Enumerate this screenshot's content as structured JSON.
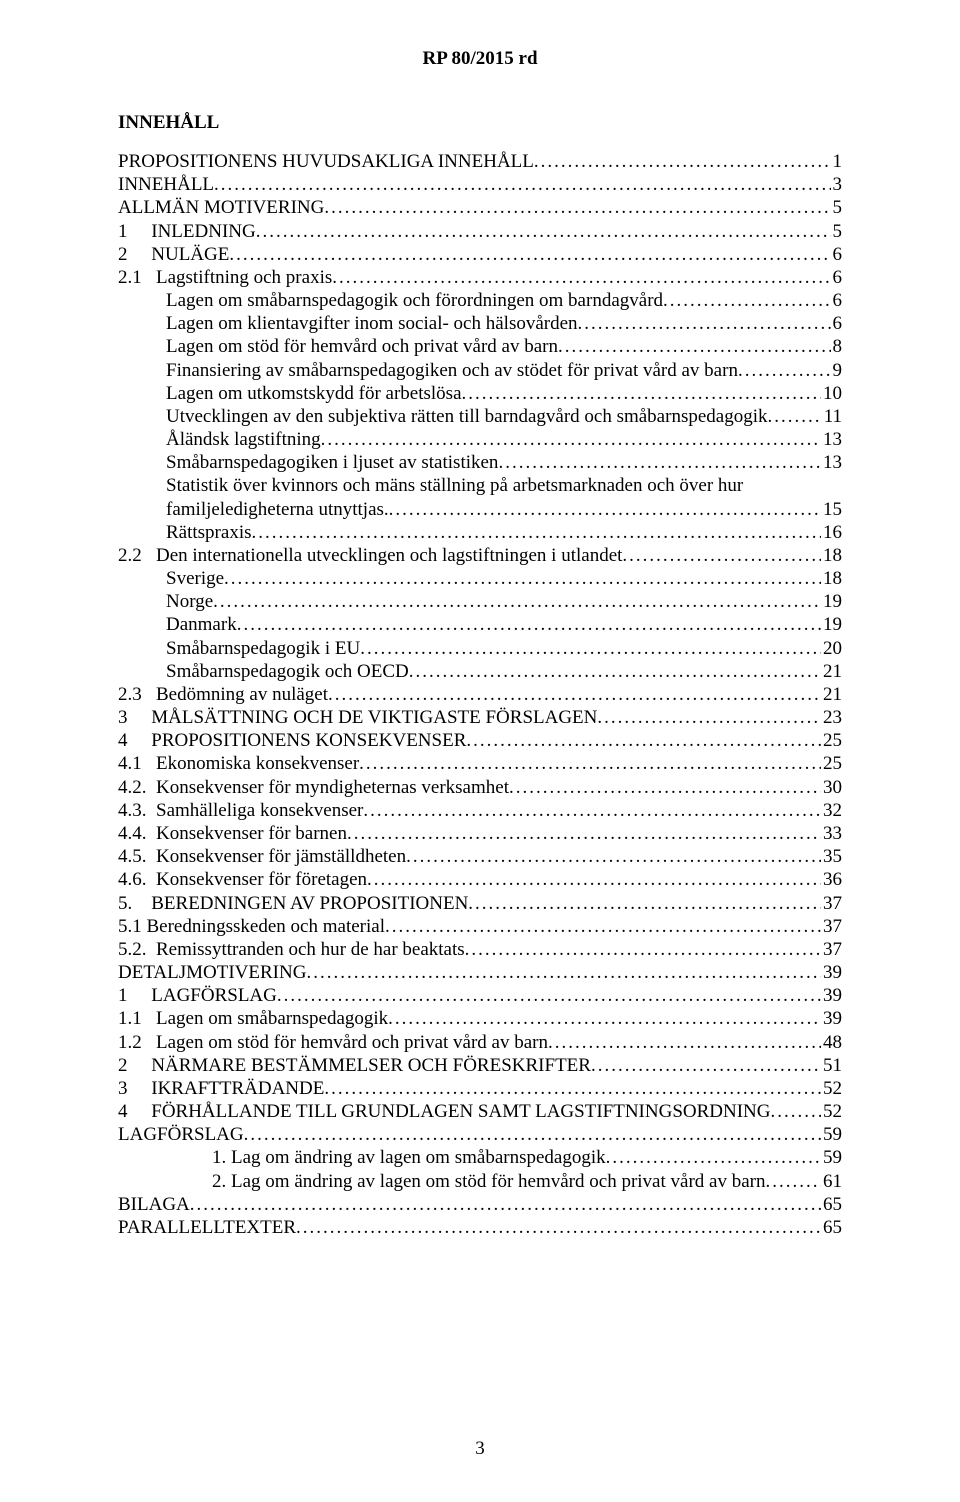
{
  "header": "RP 80/2015 rd",
  "section_title": "INNEHÅLL",
  "page_number": "3",
  "toc": [
    {
      "label": "PROPOSITIONENS HUVUDSAKLIGA INNEHÅLL",
      "page": "1",
      "indent": 0
    },
    {
      "label": "INNEHÅLL",
      "page": "3",
      "indent": 0
    },
    {
      "label": "ALLMÄN MOTIVERING",
      "page": "5",
      "indent": 0
    },
    {
      "label": "1     INLEDNING",
      "page": "5",
      "indent": 0
    },
    {
      "label": "2     NULÄGE",
      "page": "6",
      "indent": 0
    },
    {
      "label": "2.1   Lagstiftning och praxis",
      "page": "6",
      "indent": 0
    },
    {
      "label": "Lagen om småbarnspedagogik och förordningen om barndagvård",
      "page": "6",
      "indent": 1
    },
    {
      "label": "Lagen om klientavgifter inom social- och hälsovården",
      "page": "6",
      "indent": 1
    },
    {
      "label": "Lagen om stöd för hemvård och privat vård av barn",
      "page": "8",
      "indent": 1
    },
    {
      "label": "Finansiering av småbarnspedagogiken och av stödet för privat vård av barn",
      "page": "9",
      "indent": 1
    },
    {
      "label": "Lagen om utkomstskydd för arbetslösa",
      "page": "10",
      "indent": 1
    },
    {
      "label": "Utvecklingen av den subjektiva rätten till barndagvård och småbarnspedagogik",
      "page": "11",
      "indent": 1
    },
    {
      "label": "Åländsk lagstiftning",
      "page": "13",
      "indent": 1
    },
    {
      "label": "Småbarnspedagogiken i ljuset av statistiken",
      "page": "13",
      "indent": 1
    },
    {
      "label": "Statistik över kvinnors och mäns ställning på arbetsmarknaden och över hur familjeledigheterna utnyttjas.",
      "page": "15",
      "indent": 1,
      "wrap": true
    },
    {
      "label": "Rättspraxis",
      "page": "16",
      "indent": 1
    },
    {
      "label": "2.2   Den internationella utvecklingen och lagstiftningen i utlandet",
      "page": "18",
      "indent": 0
    },
    {
      "label": "Sverige",
      "page": "18",
      "indent": 1
    },
    {
      "label": "Norge",
      "page": "19",
      "indent": 1
    },
    {
      "label": "Danmark",
      "page": "19",
      "indent": 1
    },
    {
      "label": "Småbarnspedagogik i EU",
      "page": "20",
      "indent": 1
    },
    {
      "label": "Småbarnspedagogik och OECD",
      "page": "21",
      "indent": 1
    },
    {
      "label": "2.3   Bedömning av nuläget",
      "page": "21",
      "indent": 0
    },
    {
      "label": "3     MÅLSÄTTNING OCH DE VIKTIGASTE FÖRSLAGEN",
      "page": "23",
      "indent": 0
    },
    {
      "label": "4     PROPOSITIONENS KONSEKVENSER",
      "page": "25",
      "indent": 0
    },
    {
      "label": "4.1   Ekonomiska konsekvenser",
      "page": "25",
      "indent": 0
    },
    {
      "label": "4.2.  Konsekvenser för myndigheternas verksamhet",
      "page": "30",
      "indent": 0
    },
    {
      "label": "4.3.  Samhälleliga konsekvenser",
      "page": "32",
      "indent": 0
    },
    {
      "label": "4.4.  Konsekvenser för barnen",
      "page": "33",
      "indent": 0
    },
    {
      "label": "4.5.  Konsekvenser för jämställdheten",
      "page": "35",
      "indent": 0
    },
    {
      "label": "4.6.  Konsekvenser för företagen",
      "page": "36",
      "indent": 0
    },
    {
      "label": "5.    BEREDNINGEN AV PROPOSITIONEN",
      "page": "37",
      "indent": 0
    },
    {
      "label": "5.1 Beredningsskeden och material",
      "page": "37",
      "indent": 0
    },
    {
      "label": "5.2.  Remissyttranden och hur de har beaktats",
      "page": "37",
      "indent": 0
    },
    {
      "label": "DETALJMOTIVERING",
      "page": "39",
      "indent": 0
    },
    {
      "label": "1     LAGFÖRSLAG",
      "page": "39",
      "indent": 0
    },
    {
      "label": "1.1   Lagen om småbarnspedagogik",
      "page": "39",
      "indent": 0
    },
    {
      "label": "1.2   Lagen om stöd för hemvård och privat vård av barn",
      "page": "48",
      "indent": 0
    },
    {
      "label": "2     NÄRMARE BESTÄMMELSER OCH FÖRESKRIFTER",
      "page": "51",
      "indent": 0
    },
    {
      "label": "3     IKRAFTTRÄDANDE",
      "page": "52",
      "indent": 0
    },
    {
      "label": "4     FÖRHÅLLANDE TILL GRUNDLAGEN SAMT LAGSTIFTNINGSORDNING",
      "page": "52",
      "indent": 0
    },
    {
      "label": "LAGFÖRSLAG",
      "page": "59",
      "indent": 0
    },
    {
      "label": "1. Lag om ändring av lagen om småbarnspedagogik",
      "page": "59",
      "indent": 2
    },
    {
      "label": "2. Lag om ändring av lagen om stöd för hemvård och privat vård av barn",
      "page": "61",
      "indent": 2
    },
    {
      "label": "BILAGA",
      "page": "65",
      "indent": 0
    },
    {
      "label": "PARALLELLTEXTER",
      "page": "65",
      "indent": 0
    }
  ]
}
